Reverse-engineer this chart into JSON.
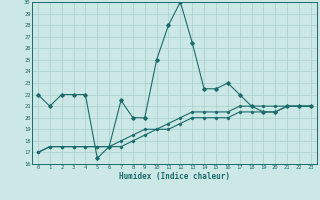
{
  "xlabel": "Humidex (Indice chaleur)",
  "x": [
    0,
    1,
    2,
    3,
    4,
    5,
    6,
    7,
    8,
    9,
    10,
    11,
    12,
    13,
    14,
    15,
    16,
    17,
    18,
    19,
    20,
    21,
    22,
    23
  ],
  "main_y": [
    22,
    21,
    22,
    22,
    22,
    16.5,
    17.5,
    21.5,
    20,
    20,
    25,
    28,
    30,
    26.5,
    22.5,
    22.5,
    23,
    22,
    21,
    20.5,
    20.5,
    21,
    21,
    21
  ],
  "low_y": [
    17,
    17.5,
    17.5,
    17.5,
    17.5,
    17.5,
    17.5,
    17.5,
    18,
    18.5,
    19,
    19,
    19.5,
    20,
    20,
    20,
    20,
    20.5,
    20.5,
    20.5,
    20.5,
    21,
    21,
    21
  ],
  "mid_y": [
    17,
    17.5,
    17.5,
    17.5,
    17.5,
    17.5,
    17.5,
    18,
    18.5,
    19,
    19,
    19.5,
    20,
    20.5,
    20.5,
    20.5,
    20.5,
    21,
    21,
    21,
    21,
    21,
    21,
    21
  ],
  "bg_color": "#cce8e6",
  "line_color": "#1a6b6b",
  "grid_color": "#aacfcc",
  "ylim": [
    16,
    30
  ],
  "yticks": [
    16,
    17,
    18,
    19,
    20,
    21,
    22,
    23,
    24,
    25,
    26,
    27,
    28,
    29,
    30
  ],
  "xticks": [
    0,
    1,
    2,
    3,
    4,
    5,
    6,
    7,
    8,
    9,
    10,
    11,
    12,
    13,
    14,
    15,
    16,
    17,
    18,
    19,
    20,
    21,
    22,
    23
  ]
}
